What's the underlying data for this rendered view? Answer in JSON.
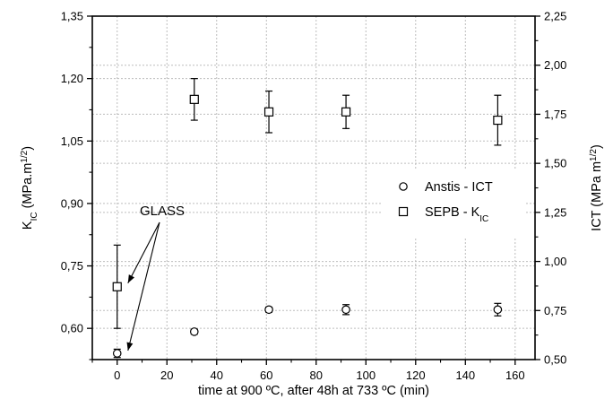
{
  "chart_data": {
    "type": "scatter",
    "title": "",
    "xlabel": "time at 900 ºC, after 48h at 733 ºC (min)",
    "ylabel_left": {
      "base": "K",
      "sub": "IC",
      "rest": " (MPa.m",
      "sup": "1/2",
      "end": ")"
    },
    "ylabel_right": {
      "base": "ICT (MPa m",
      "sup": "1/2",
      "end": ")"
    },
    "xlim": [
      -10,
      168
    ],
    "ylim_left": [
      0.525,
      1.35
    ],
    "ylim_right": [
      0.5,
      2.25
    ],
    "x_ticks": [
      0,
      20,
      40,
      60,
      80,
      100,
      120,
      140,
      160
    ],
    "x_tick_labels": [
      "0",
      "20",
      "40",
      "60",
      "80",
      "100",
      "120",
      "140",
      "160"
    ],
    "y_left_ticks": [
      0.6,
      0.75,
      0.9,
      1.05,
      1.2,
      1.35
    ],
    "y_left_tick_labels": [
      "0,60",
      "0,75",
      "0,90",
      "1,05",
      "1,20",
      "1,35"
    ],
    "y_right_ticks": [
      0.5,
      0.75,
      1.0,
      1.25,
      1.5,
      1.75,
      2.0,
      2.25
    ],
    "y_right_tick_labels": [
      "0,50",
      "0,75",
      "1,00",
      "1,25",
      "1,50",
      "1,75",
      "2,00",
      "2,25"
    ],
    "grid": true,
    "legend_position": "center-right",
    "series": [
      {
        "name": "Anstis - ICT",
        "legend_label": {
          "base": "Anstis - ICT"
        },
        "marker": "circle",
        "axis": "left",
        "x": [
          0,
          31,
          61,
          92,
          153
        ],
        "y": [
          0.54,
          0.592,
          0.645,
          0.645,
          0.645
        ],
        "err": [
          0.01,
          0.006,
          0.006,
          0.012,
          0.015
        ]
      },
      {
        "name": "SEPB - KIC",
        "legend_label": {
          "base": "SEPB - K",
          "sub": "IC"
        },
        "marker": "square",
        "axis": "left",
        "x": [
          0,
          31,
          61,
          92,
          153
        ],
        "y": [
          0.7,
          1.15,
          1.12,
          1.12,
          1.1
        ],
        "err": [
          0.1,
          0.05,
          0.05,
          0.04,
          0.06
        ]
      }
    ],
    "annotations": [
      {
        "text": "GLASS",
        "arrow_targets": [
          [
            0,
            0.7
          ],
          [
            0,
            0.54
          ]
        ]
      }
    ],
    "colors": {
      "marker": "#000000",
      "grid": "#bdbdbd",
      "axis": "#000000",
      "background": "#ffffff"
    }
  }
}
